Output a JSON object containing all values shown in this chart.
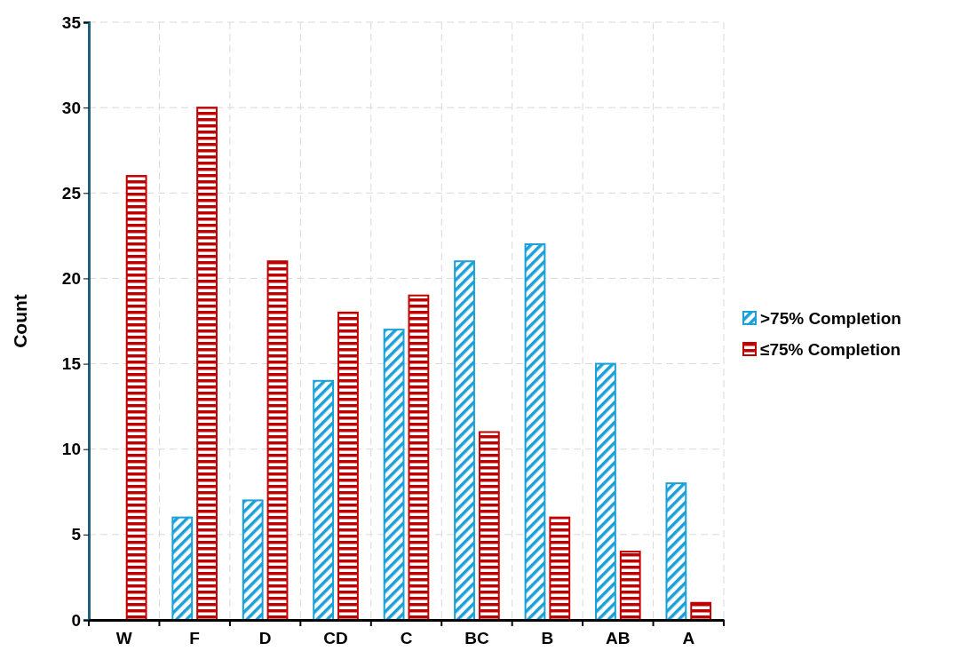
{
  "chart_data": {
    "type": "bar",
    "ylabel": "Count",
    "categories": [
      "W",
      "F",
      "D",
      "CD",
      "C",
      "BC",
      "B",
      "AB",
      "A"
    ],
    "series": [
      {
        "name": ">75% Completion",
        "color": "#1aa0d8",
        "values": [
          0,
          6,
          7,
          14,
          17,
          21,
          22,
          15,
          8
        ]
      },
      {
        "name": "≤75% Completion",
        "color": "#c00000",
        "values": [
          26,
          30,
          21,
          18,
          19,
          11,
          6,
          4,
          1
        ]
      }
    ],
    "ylim": [
      0,
      35
    ],
    "yticks": [
      0,
      5,
      10,
      15,
      20,
      25,
      30,
      35
    ],
    "grid": true,
    "legend": "right"
  }
}
